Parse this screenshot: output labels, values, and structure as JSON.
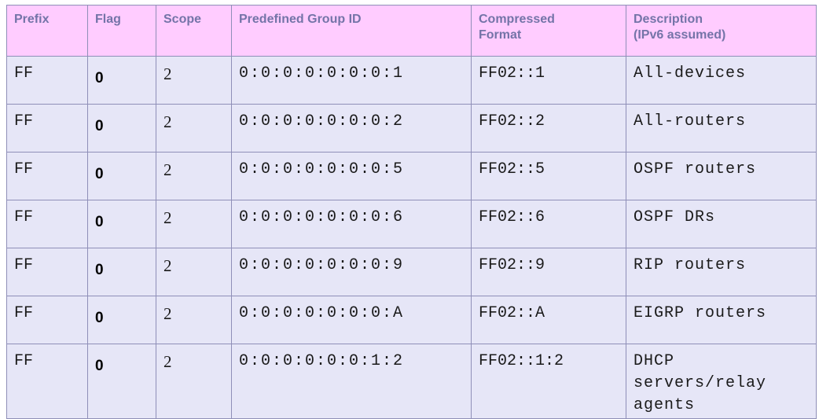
{
  "headers": {
    "prefix": "Prefix",
    "flag": "Flag",
    "scope": "Scope",
    "group_id": "Predefined Group ID",
    "compressed_line1": "Compressed",
    "compressed_line2": "Format",
    "description_line1": "Description",
    "description_line2": "(IPv6 assumed)"
  },
  "rows": [
    {
      "prefix": "FF",
      "flag": "0",
      "scope": "2",
      "group_id": "0:0:0:0:0:0:0:1",
      "compressed": "FF02::1",
      "description": "All-devices"
    },
    {
      "prefix": "FF",
      "flag": "0",
      "scope": "2",
      "group_id": "0:0:0:0:0:0:0:2",
      "compressed": "FF02::2",
      "description": "All-routers"
    },
    {
      "prefix": "FF",
      "flag": "0",
      "scope": "2",
      "group_id": "0:0:0:0:0:0:0:5",
      "compressed": "FF02::5",
      "description": "OSPF routers"
    },
    {
      "prefix": "FF",
      "flag": "0",
      "scope": "2",
      "group_id": "0:0:0:0:0:0:0:6",
      "compressed": "FF02::6",
      "description": "OSPF DRs"
    },
    {
      "prefix": "FF",
      "flag": "0",
      "scope": "2",
      "group_id": "0:0:0:0:0:0:0:9",
      "compressed": "FF02::9",
      "description": "RIP routers"
    },
    {
      "prefix": "FF",
      "flag": "0",
      "scope": "2",
      "group_id": "0:0:0:0:0:0:0:A",
      "compressed": "FF02::A",
      "description": "EIGRP routers"
    },
    {
      "prefix": "FF",
      "flag": "0",
      "scope": "2",
      "group_id": "0:0:0:0:0:0:1:2",
      "compressed": "FF02::1:2",
      "description_lines": [
        "DHCP",
        "servers/relay",
        "agents"
      ]
    }
  ],
  "colors": {
    "header_bg": "#ffccff",
    "header_text": "#7474a8",
    "body_bg": "#e6e6f7",
    "border": "#8f8fb8"
  }
}
